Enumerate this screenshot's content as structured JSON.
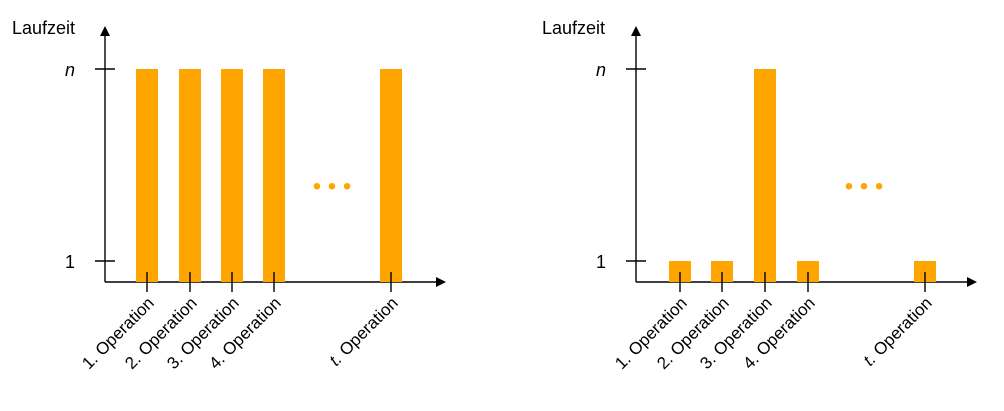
{
  "bar_color": "#FFA500",
  "chart_data": [
    {
      "type": "bar",
      "ylabel": "Laufzeit",
      "y_ticks": [
        "1",
        "n"
      ],
      "y_levels": {
        "1": 1,
        "n": 10
      },
      "categories": [
        "1. Operation",
        "2. Operation",
        "3. Operation",
        "4. Operation",
        "t. Operation"
      ],
      "values": [
        "n",
        "n",
        "n",
        "n",
        "n"
      ],
      "ellipsis": "• • •",
      "ellipsis_after_index": 3
    },
    {
      "type": "bar",
      "ylabel": "Laufzeit",
      "y_ticks": [
        "1",
        "n"
      ],
      "y_levels": {
        "1": 1,
        "n": 10
      },
      "categories": [
        "1. Operation",
        "2. Operation",
        "3. Operation",
        "4. Operation",
        "t. Operation"
      ],
      "values": [
        "1",
        "1",
        "n",
        "1",
        "1"
      ],
      "ellipsis": "• • •",
      "ellipsis_after_index": 3
    }
  ]
}
